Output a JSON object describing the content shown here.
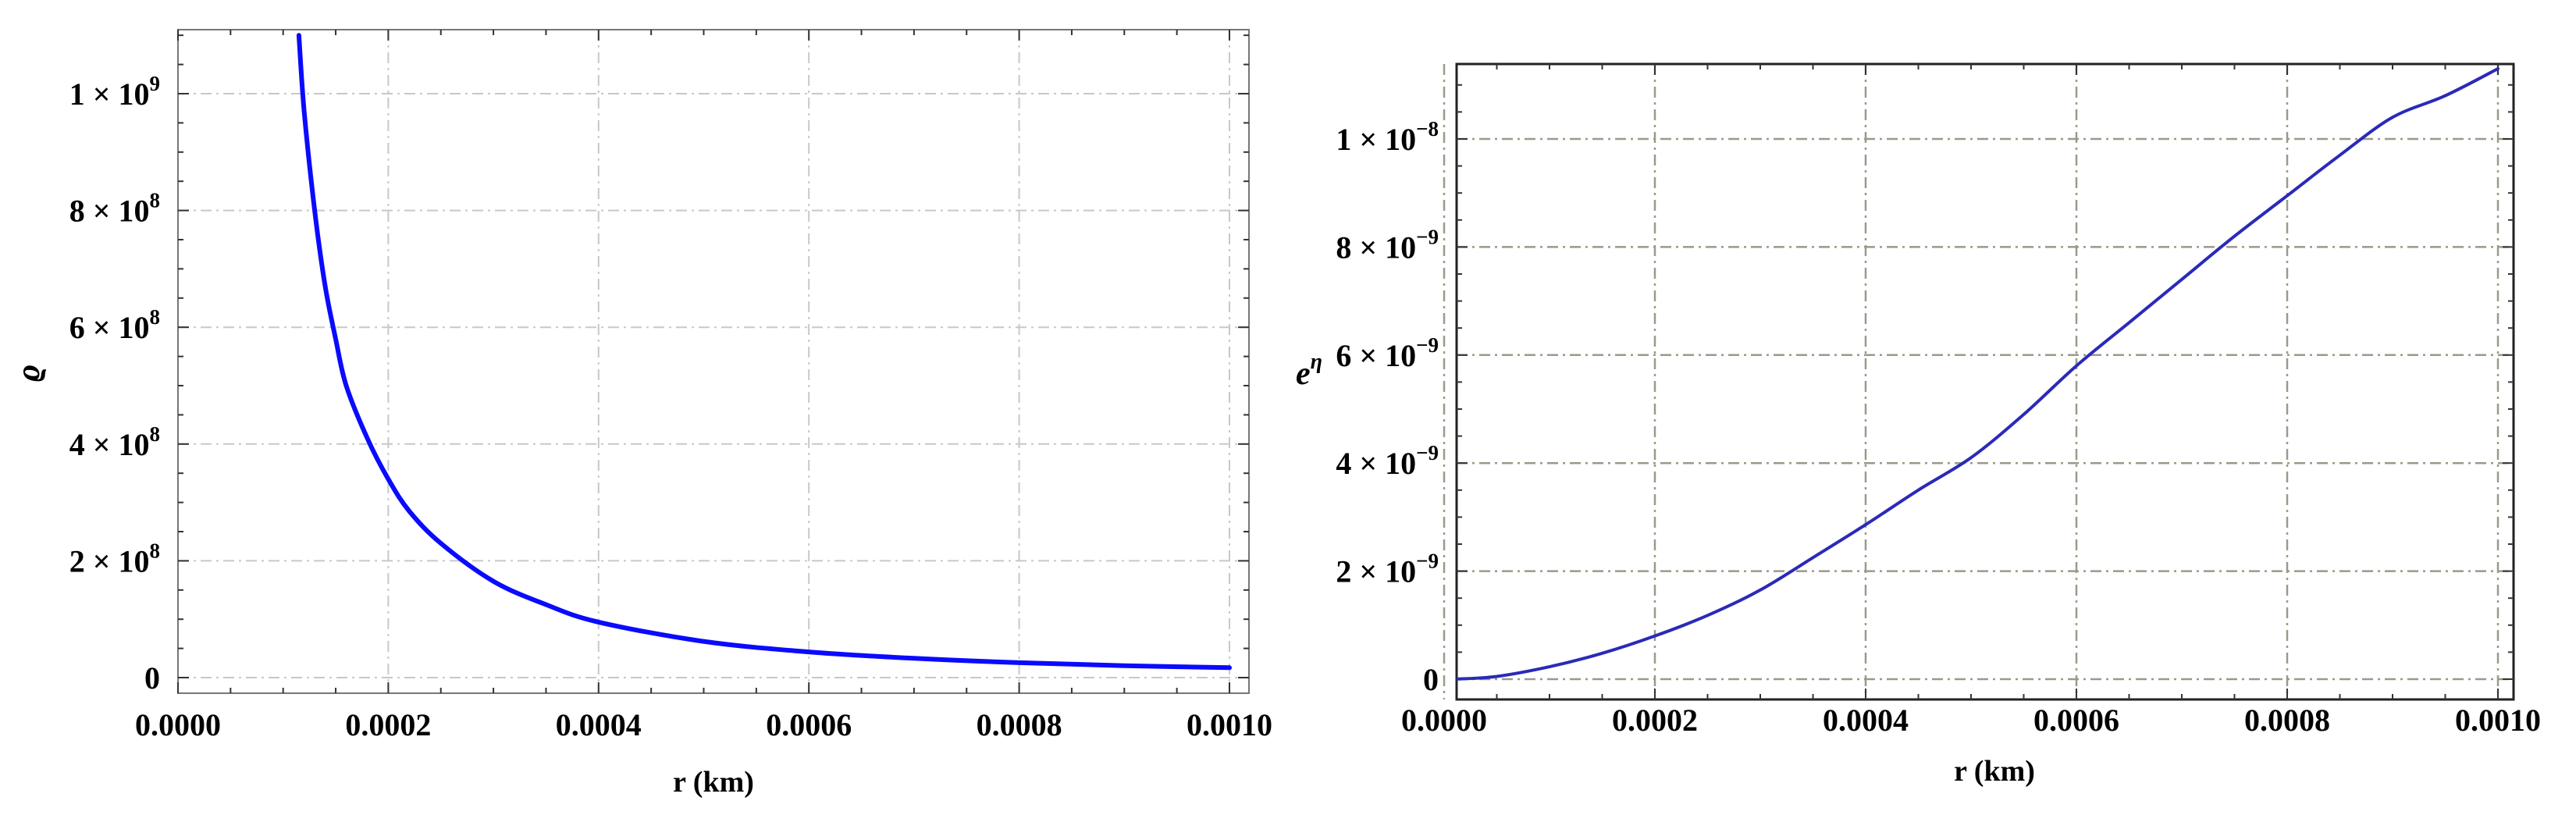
{
  "chart_data": [
    {
      "type": "line",
      "title": "",
      "xlabel": "r (km)",
      "ylabel": "ϱ",
      "xlim": [
        0,
        0.001
      ],
      "ylim": [
        -18000000.0,
        1100000000.0
      ],
      "grid": true,
      "x_ticks": [
        "0.0000",
        "0.0002",
        "0.0004",
        "0.0006",
        "0.0008",
        "0.0010"
      ],
      "x_tick_values": [
        0,
        0.0002,
        0.0004,
        0.0006,
        0.0008,
        0.001
      ],
      "y_ticks": [
        {
          "value": 0,
          "mantissa": "0",
          "exponent": ""
        },
        {
          "value": 200000000.0,
          "mantissa": "2 × 10",
          "exponent": "8"
        },
        {
          "value": 400000000.0,
          "mantissa": "4 × 10",
          "exponent": "8"
        },
        {
          "value": 600000000.0,
          "mantissa": "6 × 10",
          "exponent": "8"
        },
        {
          "value": 800000000.0,
          "mantissa": "8 × 10",
          "exponent": "8"
        },
        {
          "value": 1000000000.0,
          "mantissa": "1 × 10",
          "exponent": "9"
        }
      ],
      "series": [
        {
          "color": "#0a0aff",
          "x": [
            0.000115,
            0.00012,
            0.00013,
            0.00014,
            0.00015,
            0.00016,
            0.00018,
            0.0002,
            0.00022,
            0.00025,
            0.0003,
            0.00035,
            0.0004,
            0.0005,
            0.0006,
            0.0007,
            0.0008,
            0.0009,
            0.001
          ],
          "y": [
            1100000000.0,
            970000000.0,
            800000000.0,
            670000000.0,
            580000000.0,
            500000000.0,
            410000000.0,
            340000000.0,
            285000000.0,
            230000000.0,
            165000000.0,
            125000000.0,
            95000000.0,
            62000000.0,
            44000000.0,
            33000000.0,
            25500000.0,
            20500000.0,
            17000000.0
          ]
        }
      ]
    },
    {
      "type": "line",
      "title": "",
      "xlabel": "r (km)",
      "ylabel": {
        "base": "e",
        "exponent": "η"
      },
      "xlim": [
        0,
        0.001
      ],
      "ylim": [
        -30000000000.0,
        114000000.0
      ],
      "grid": true,
      "x_ticks": [
        "0.0000",
        "0.0002",
        "0.0004",
        "0.0006",
        "0.0008",
        "0.0010"
      ],
      "x_tick_values": [
        0,
        0.0002,
        0.0004,
        0.0006,
        0.0008,
        0.001
      ],
      "y_ticks": [
        {
          "value": 0,
          "mantissa": "0",
          "exponent": ""
        },
        {
          "value": 2e-09,
          "mantissa": "2 × 10",
          "exponent": "−9"
        },
        {
          "value": 4e-09,
          "mantissa": "4 × 10",
          "exponent": "−9"
        },
        {
          "value": 6e-09,
          "mantissa": "6 × 10",
          "exponent": "−9"
        },
        {
          "value": 8e-09,
          "mantissa": "8 × 10",
          "exponent": "−9"
        },
        {
          "value": 1e-08,
          "mantissa": "1 × 10",
          "exponent": "−8"
        }
      ],
      "series": [
        {
          "color": "#2a2ab8",
          "x": [
            1e-05,
            5e-05,
            0.0001,
            0.00015,
            0.0002,
            0.00025,
            0.0003,
            0.00035,
            0.0004,
            0.00045,
            0.0005,
            0.00055,
            0.0006,
            0.00065,
            0.0007,
            0.00075,
            0.0008,
            0.00085,
            0.0009,
            0.00095,
            0.001
          ],
          "y": [
            0,
            5e-11,
            2.3e-10,
            4.8e-10,
            8e-10,
            1.18e-09,
            1.65e-09,
            2.25e-09,
            2.86e-09,
            3.5e-09,
            4.1e-09,
            4.9e-09,
            5.8e-09,
            6.6e-09,
            7.4e-09,
            8.2e-09,
            8.95e-09,
            9.7e-09,
            1.04e-08,
            1.08e-08,
            1.13e-08
          ]
        }
      ]
    }
  ]
}
